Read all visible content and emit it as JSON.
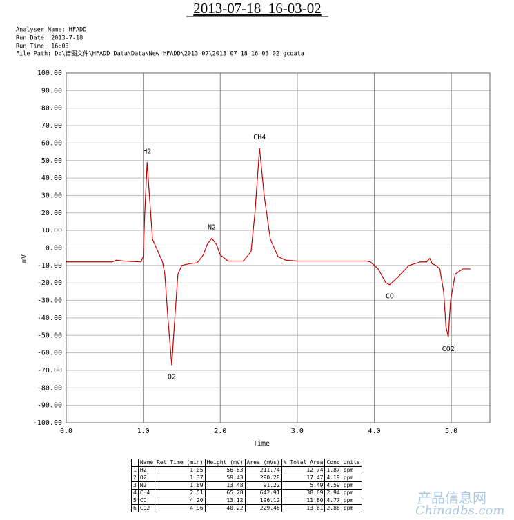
{
  "header": {
    "title": "2013-07-18_16-03-02",
    "info": [
      "Analyser Name: HFADD",
      "Run Date: 2013-7-18",
      "Run Time: 16:03",
      "File Path: D:\\谱图文件\\HFADD Data\\Data\\New-HFADD\\2013-07\\2013-07-18_16-03-02.gcdata"
    ]
  },
  "chart_data": {
    "type": "line",
    "x_label": "Time",
    "y_label": "mV",
    "color": "#c00000",
    "grid": true,
    "xlim": [
      0,
      5.5
    ],
    "xticks": [
      {
        "value": 0,
        "label": "0.0"
      },
      {
        "value": 1,
        "label": "1.0"
      },
      {
        "value": 2,
        "label": "2.0"
      },
      {
        "value": 3,
        "label": "3.0"
      },
      {
        "value": 4,
        "label": "4.0"
      },
      {
        "value": 5,
        "label": "5.0"
      }
    ],
    "ylim": [
      -100,
      100
    ],
    "yticks": [
      {
        "value": 100,
        "label": "100.00"
      },
      {
        "value": 90,
        "label": "90.00"
      },
      {
        "value": 80,
        "label": "80.00"
      },
      {
        "value": 70,
        "label": "70.00"
      },
      {
        "value": 60,
        "label": "60.00"
      },
      {
        "value": 50,
        "label": "50.00"
      },
      {
        "value": 40,
        "label": "40.00"
      },
      {
        "value": 30,
        "label": "30.00"
      },
      {
        "value": 20,
        "label": "20.00"
      },
      {
        "value": 10,
        "label": "10.00"
      },
      {
        "value": 0,
        "label": "0.00"
      },
      {
        "value": -10,
        "label": "-10.00"
      },
      {
        "value": -20,
        "label": "-20.00"
      },
      {
        "value": -30,
        "label": "-30.00"
      },
      {
        "value": -40,
        "label": "-40.00"
      },
      {
        "value": -50,
        "label": "-50.00"
      },
      {
        "value": -60,
        "label": "-60.00"
      },
      {
        "value": -70,
        "label": "-70.00"
      },
      {
        "value": -80,
        "label": "-80.00"
      },
      {
        "value": -90,
        "label": "-90.00"
      },
      {
        "value": -100,
        "label": "-100.00"
      }
    ],
    "x": [
      0,
      0.6,
      0.65,
      0.75,
      0.97,
      1.0,
      1.02,
      1.05,
      1.08,
      1.12,
      1.2,
      1.25,
      1.28,
      1.32,
      1.37,
      1.41,
      1.45,
      1.5,
      1.6,
      1.7,
      1.78,
      1.83,
      1.89,
      1.95,
      2.0,
      2.1,
      2.3,
      2.4,
      2.45,
      2.51,
      2.57,
      2.65,
      2.75,
      2.85,
      3.0,
      3.9,
      3.95,
      4.05,
      4.15,
      4.2,
      4.3,
      4.45,
      4.6,
      4.68,
      4.72,
      4.75,
      4.8,
      4.85,
      4.9,
      4.93,
      4.96,
      4.99,
      5.05,
      5.15,
      5.25
    ],
    "values": [
      -8,
      -8,
      -7,
      -7.5,
      -8,
      -5,
      20,
      49,
      30,
      5,
      -3,
      -8,
      -15,
      -40,
      -67,
      -40,
      -15,
      -10,
      -9,
      -8.5,
      -4,
      2,
      5.5,
      2,
      -4,
      -7.5,
      -7.5,
      -2,
      20,
      57,
      30,
      5,
      -5,
      -7,
      -7.5,
      -7.5,
      -8,
      -12,
      -20,
      -21,
      -17,
      -10,
      -8,
      -8,
      -6,
      -9,
      -10,
      -12,
      -25,
      -45,
      -51,
      -30,
      -15,
      -12,
      -12
    ],
    "peaks": [
      {
        "label": "H2",
        "x": 1.05,
        "y": 49
      },
      {
        "label": "O2",
        "x": 1.37,
        "y": -67
      },
      {
        "label": "N2",
        "x": 1.89,
        "y": 5.5
      },
      {
        "label": "CH4",
        "x": 2.51,
        "y": 57
      },
      {
        "label": "CO",
        "x": 4.2,
        "y": -21
      },
      {
        "label": "CO2",
        "x": 4.96,
        "y": -51
      }
    ]
  },
  "table": {
    "columns": [
      "Name",
      "Ret Time (min)",
      "Height (mV)",
      "Area (mVs)",
      "% Total Area",
      "Conc",
      "Units"
    ],
    "rows": [
      [
        "1",
        "H2",
        "1.05",
        "56.83",
        "211.74",
        "12.74",
        "1.87",
        "ppm"
      ],
      [
        "2",
        "O2",
        "1.37",
        "59.43",
        "290.28",
        "17.47",
        "4.19",
        "ppm"
      ],
      [
        "3",
        "N2",
        "1.89",
        "13.48",
        "91.22",
        "5.49",
        "4.59",
        "ppm"
      ],
      [
        "4",
        "CH4",
        "2.51",
        "65.28",
        "642.91",
        "38.69",
        "2.94",
        "ppm"
      ],
      [
        "5",
        "CO",
        "4.20",
        "13.12",
        "196.12",
        "11.80",
        "4.77",
        "ppm"
      ],
      [
        "6",
        "CO2",
        "4.96",
        "40.22",
        "229.46",
        "13.81",
        "2.88",
        "ppm"
      ]
    ]
  },
  "watermark": [
    "产品信息网",
    "Chinadbs.com"
  ]
}
